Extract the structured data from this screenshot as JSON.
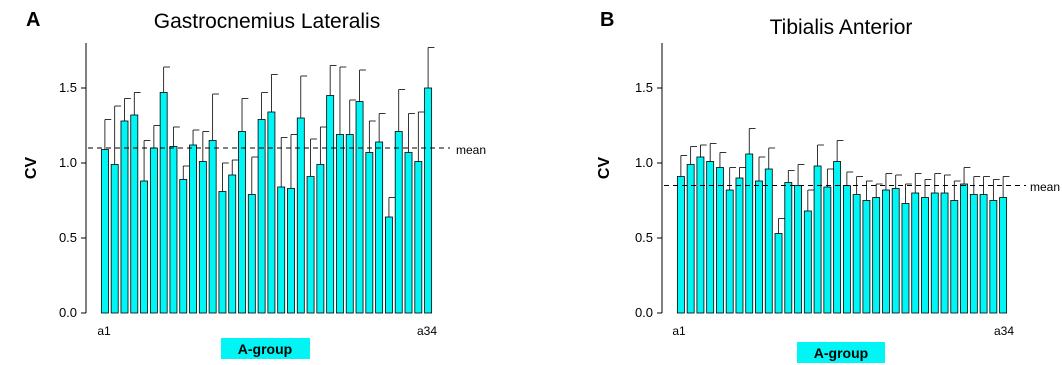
{
  "colors": {
    "bar_fill": "#00f5f5",
    "group_label_bg": "#00f5f5",
    "axis": "#000000"
  },
  "chart_data": [
    {
      "type": "bar",
      "panel_letter": "A",
      "title": "Gastrocnemius Lateralis",
      "ylabel": "CV",
      "ylim": [
        0,
        1.8
      ],
      "yticks": [
        "0.0",
        "0.5",
        "1.0",
        "1.5"
      ],
      "ytick_values": [
        0,
        0.5,
        1.0,
        1.5
      ],
      "x_first_label": "a1",
      "x_last_label": "a34",
      "group_label": "A-group",
      "mean": 1.1,
      "mean_label": "mean",
      "values": [
        1.09,
        0.99,
        1.28,
        1.32,
        0.88,
        1.1,
        1.47,
        1.11,
        0.89,
        1.12,
        1.01,
        1.15,
        0.81,
        0.92,
        1.21,
        0.79,
        1.29,
        1.34,
        0.84,
        0.83,
        1.3,
        0.91,
        0.99,
        1.45,
        1.19,
        1.19,
        1.41,
        1.07,
        1.14,
        0.64,
        1.21,
        1.07,
        1.01,
        1.5
      ],
      "errors": [
        0.2,
        0.39,
        0.15,
        0.15,
        0.27,
        0.15,
        0.17,
        0.13,
        0.09,
        0.1,
        0.2,
        0.31,
        0.19,
        0.1,
        0.22,
        0.25,
        0.18,
        0.25,
        0.33,
        0.36,
        0.28,
        0.25,
        0.25,
        0.2,
        0.45,
        0.23,
        0.21,
        0.21,
        0.19,
        0.13,
        0.28,
        0.26,
        0.33,
        0.27
      ],
      "grid": false,
      "legend": "none"
    },
    {
      "type": "bar",
      "panel_letter": "B",
      "title": "Tibialis Anterior",
      "ylabel": "CV",
      "ylim": [
        0,
        1.8
      ],
      "yticks": [
        "0.0",
        "0.5",
        "1.0",
        "1.5"
      ],
      "ytick_values": [
        0,
        0.5,
        1.0,
        1.5
      ],
      "x_first_label": "a1",
      "x_last_label": "a34",
      "group_label": "A-group",
      "mean": 0.85,
      "mean_label": "mean",
      "values": [
        0.91,
        0.99,
        1.04,
        1.01,
        0.97,
        0.82,
        0.9,
        1.06,
        0.88,
        0.96,
        0.53,
        0.87,
        0.85,
        0.68,
        0.98,
        0.84,
        1.01,
        0.85,
        0.79,
        0.75,
        0.77,
        0.82,
        0.83,
        0.73,
        0.8,
        0.77,
        0.8,
        0.8,
        0.75,
        0.86,
        0.79,
        0.79,
        0.75,
        0.77
      ],
      "errors": [
        0.14,
        0.12,
        0.08,
        0.12,
        0.1,
        0.15,
        0.07,
        0.17,
        0.16,
        0.14,
        0.1,
        0.08,
        0.14,
        0.14,
        0.14,
        0.12,
        0.14,
        0.09,
        0.12,
        0.13,
        0.09,
        0.11,
        0.09,
        0.13,
        0.13,
        0.12,
        0.13,
        0.12,
        0.13,
        0.11,
        0.12,
        0.12,
        0.14,
        0.14
      ],
      "grid": false,
      "legend": "none"
    }
  ]
}
